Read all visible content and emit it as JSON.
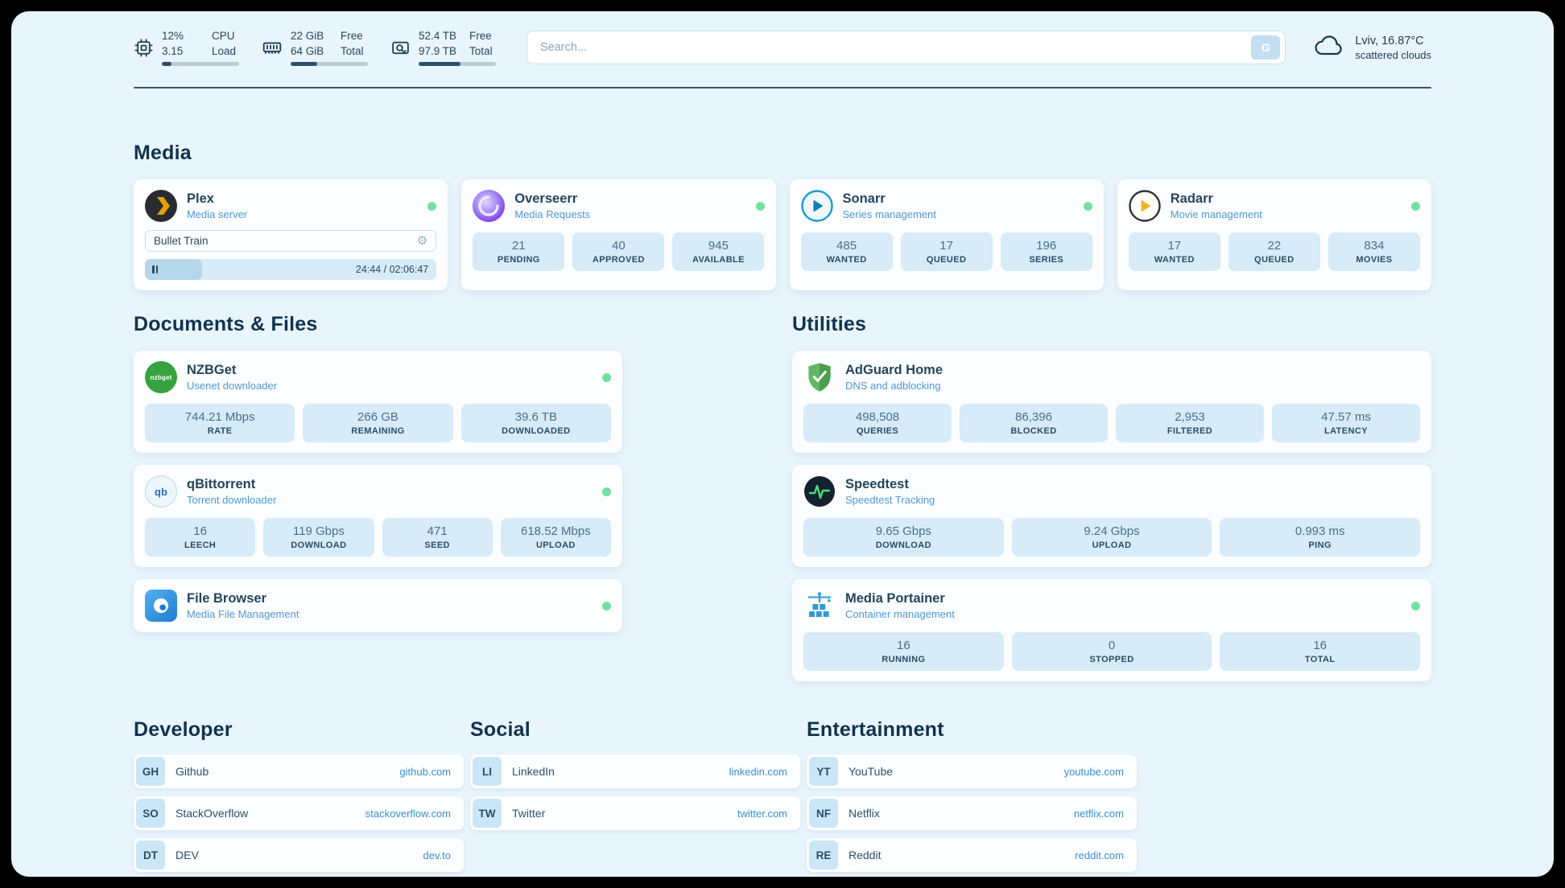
{
  "header": {
    "cpu": {
      "v1": "12%",
      "v2": "3.15",
      "l1": "CPU",
      "l2": "Load",
      "pct": 12
    },
    "ram": {
      "v1": "22 GiB",
      "v2": "64 GiB",
      "l1": "Free",
      "l2": "Total",
      "pct": 34
    },
    "disk": {
      "v1": "52.4 TB",
      "v2": "97.9 TB",
      "l1": "Free",
      "l2": "Total",
      "pct": 54
    },
    "search": {
      "placeholder": "Search...",
      "button_label": "G"
    },
    "weather": {
      "location": "Lviv, 16.87°C",
      "condition": "scattered clouds"
    }
  },
  "icons": {
    "gear": "⚙",
    "qbit": "qb",
    "nzbget": "nzbget"
  },
  "colors": {
    "accent_link": "#3b8ed6",
    "tile": "#d7ebf8",
    "status_online": "#72e0a0",
    "page_bg": "#e9f5fd"
  },
  "sections": {
    "media": {
      "title": "Media",
      "plex": {
        "name": "Plex",
        "subtitle": "Media server",
        "status": "online",
        "now_playing": "Bullet Train",
        "time": "24:44 / 02:06:47",
        "progress_pct": 19.5
      },
      "overseerr": {
        "name": "Overseerr",
        "subtitle": "Media Requests",
        "status": "online",
        "stats": [
          {
            "value": "21",
            "label": "PENDING"
          },
          {
            "value": "40",
            "label": "APPROVED"
          },
          {
            "value": "945",
            "label": "AVAILABLE"
          }
        ]
      },
      "sonarr": {
        "name": "Sonarr",
        "subtitle": "Series management",
        "status": "online",
        "stats": [
          {
            "value": "485",
            "label": "WANTED"
          },
          {
            "value": "17",
            "label": "QUEUED"
          },
          {
            "value": "196",
            "label": "SERIES"
          }
        ]
      },
      "radarr": {
        "name": "Radarr",
        "subtitle": "Movie management",
        "status": "online",
        "stats": [
          {
            "value": "17",
            "label": "WANTED"
          },
          {
            "value": "22",
            "label": "QUEUED"
          },
          {
            "value": "834",
            "label": "MOVIES"
          }
        ]
      }
    },
    "documents": {
      "title": "Documents & Files",
      "nzbget": {
        "name": "NZBGet",
        "subtitle": "Usenet downloader",
        "status": "online",
        "stats": [
          {
            "value": "744.21 Mbps",
            "label": "RATE"
          },
          {
            "value": "266 GB",
            "label": "REMAINING"
          },
          {
            "value": "39.6 TB",
            "label": "DOWNLOADED"
          }
        ]
      },
      "qbittorrent": {
        "name": "qBittorrent",
        "subtitle": "Torrent downloader",
        "status": "online",
        "stats": [
          {
            "value": "16",
            "label": "LEECH"
          },
          {
            "value": "119 Gbps",
            "label": "DOWNLOAD"
          },
          {
            "value": "471",
            "label": "SEED"
          },
          {
            "value": "618.52 Mbps",
            "label": "UPLOAD"
          }
        ]
      },
      "filebrowser": {
        "name": "File Browser",
        "subtitle": "Media File Management",
        "status": "online"
      }
    },
    "utilities": {
      "title": "Utilities",
      "adguard": {
        "name": "AdGuard Home",
        "subtitle": "DNS and adblocking",
        "stats": [
          {
            "value": "498,508",
            "label": "QUERIES"
          },
          {
            "value": "86,396",
            "label": "BLOCKED"
          },
          {
            "value": "2,953",
            "label": "FILTERED"
          },
          {
            "value": "47.57 ms",
            "label": "LATENCY"
          }
        ]
      },
      "speedtest": {
        "name": "Speedtest",
        "subtitle": "Speedtest Tracking",
        "stats": [
          {
            "value": "9.65 Gbps",
            "label": "DOWNLOAD"
          },
          {
            "value": "9.24 Gbps",
            "label": "UPLOAD"
          },
          {
            "value": "0.993 ms",
            "label": "PING"
          }
        ]
      },
      "portainer": {
        "name": "Media Portainer",
        "subtitle": "Container management",
        "status": "online",
        "stats": [
          {
            "value": "16",
            "label": "RUNNING"
          },
          {
            "value": "0",
            "label": "STOPPED"
          },
          {
            "value": "16",
            "label": "TOTAL"
          }
        ]
      }
    },
    "developer": {
      "title": "Developer",
      "links": [
        {
          "abbr": "GH",
          "name": "Github",
          "url": "github.com"
        },
        {
          "abbr": "SO",
          "name": "StackOverflow",
          "url": "stackoverflow.com"
        },
        {
          "abbr": "DT",
          "name": "DEV",
          "url": "dev.to"
        }
      ]
    },
    "social": {
      "title": "Social",
      "links": [
        {
          "abbr": "LI",
          "name": "LinkedIn",
          "url": "linkedin.com"
        },
        {
          "abbr": "TW",
          "name": "Twitter",
          "url": "twitter.com"
        }
      ]
    },
    "entertainment": {
      "title": "Entertainment",
      "links": [
        {
          "abbr": "YT",
          "name": "YouTube",
          "url": "youtube.com"
        },
        {
          "abbr": "NF",
          "name": "Netflix",
          "url": "netflix.com"
        },
        {
          "abbr": "RE",
          "name": "Reddit",
          "url": "reddit.com"
        }
      ]
    }
  }
}
